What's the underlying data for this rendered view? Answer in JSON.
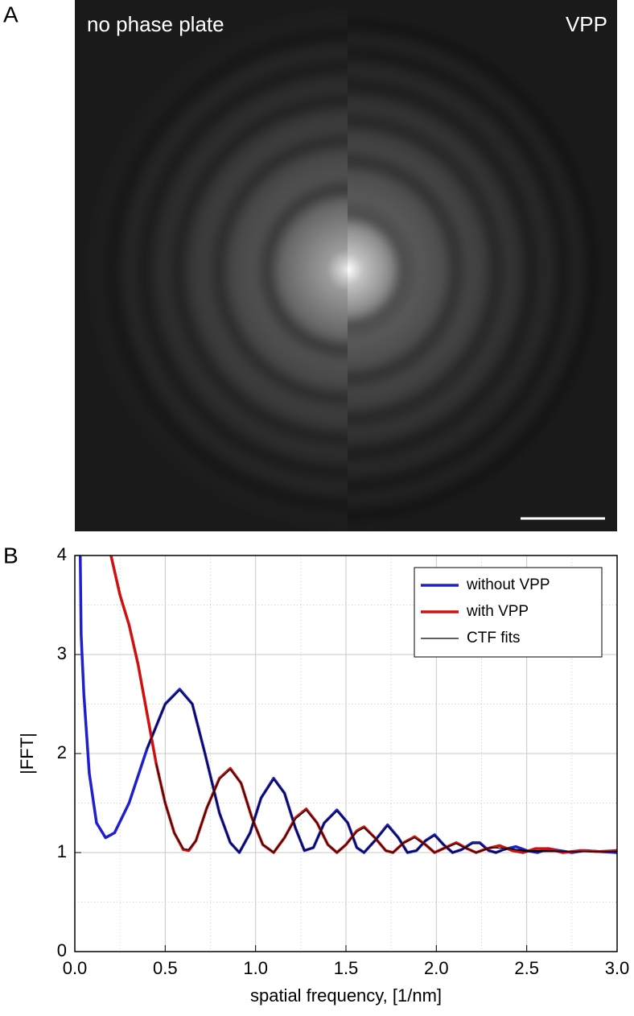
{
  "image_panel": {
    "label": "A",
    "left_text": "no phase plate",
    "right_text": "VPP"
  },
  "chart_data": {
    "type": "line",
    "panel_label": "B",
    "x_label": "spatial frequency, [1/nm]",
    "y_label": "|FFT|",
    "xlim": [
      0,
      3
    ],
    "ylim": [
      0,
      4
    ],
    "xticks": [
      {
        "value": 0,
        "label": "0.0"
      },
      0.5,
      {
        "value": 1,
        "label": "1.0"
      },
      1.5,
      {
        "value": 2,
        "label": "2.0"
      },
      2.5,
      {
        "value": 3,
        "label": "3.0"
      }
    ],
    "yticks": [
      0,
      1,
      2,
      3,
      4
    ],
    "xticks_minor": [
      0.25,
      0.75,
      1.25,
      1.75,
      2.25,
      2.75
    ],
    "yticks_minor": [
      0.5,
      1.5,
      2.5,
      3.5
    ],
    "grid": true,
    "legend": "upper right",
    "series": [
      {
        "name": "without VPP",
        "color": "#1f1fd0",
        "line_width": 3.5,
        "x": [
          0.03,
          0.035,
          0.05,
          0.08,
          0.12,
          0.17,
          0.22,
          0.3,
          0.4,
          0.5,
          0.58,
          0.65,
          0.72,
          0.8,
          0.86,
          0.91,
          0.97,
          1.03,
          1.1,
          1.16,
          1.22,
          1.27,
          1.32,
          1.38,
          1.45,
          1.51,
          1.56,
          1.6,
          1.66,
          1.73,
          1.79,
          1.84,
          1.89,
          1.94,
          1.99,
          2.04,
          2.09,
          2.14,
          2.2,
          2.24,
          2.29,
          2.33,
          2.37,
          2.44,
          2.5,
          2.56,
          2.62,
          2.68,
          2.75,
          2.82,
          2.9,
          3.0
        ],
        "values": [
          4,
          3.2,
          2.6,
          1.8,
          1.3,
          1.15,
          1.2,
          1.5,
          2.05,
          2.5,
          2.65,
          2.5,
          2.0,
          1.4,
          1.1,
          1.0,
          1.2,
          1.55,
          1.75,
          1.6,
          1.25,
          1.02,
          1.05,
          1.3,
          1.43,
          1.3,
          1.05,
          1.0,
          1.12,
          1.28,
          1.15,
          1.0,
          1.02,
          1.12,
          1.18,
          1.08,
          1.0,
          1.03,
          1.1,
          1.1,
          1.02,
          1.0,
          1.03,
          1.06,
          1.02,
          1.0,
          1.04,
          1.02,
          1.0,
          1.02,
          1.01,
          1.0
        ]
      },
      {
        "name": "with VPP",
        "color": "#d01010",
        "line_width": 3.5,
        "x": [
          0.2,
          0.25,
          0.3,
          0.35,
          0.4,
          0.45,
          0.5,
          0.55,
          0.6,
          0.63,
          0.67,
          0.73,
          0.8,
          0.86,
          0.92,
          0.98,
          1.04,
          1.1,
          1.16,
          1.22,
          1.28,
          1.34,
          1.4,
          1.45,
          1.5,
          1.56,
          1.6,
          1.66,
          1.72,
          1.76,
          1.82,
          1.88,
          1.94,
          1.99,
          2.05,
          2.11,
          2.17,
          2.22,
          2.28,
          2.35,
          2.42,
          2.48,
          2.55,
          2.62,
          2.7,
          2.8,
          2.9,
          3.0
        ],
        "values": [
          4,
          3.6,
          3.3,
          2.9,
          2.4,
          1.9,
          1.5,
          1.2,
          1.03,
          1.02,
          1.12,
          1.45,
          1.75,
          1.85,
          1.7,
          1.35,
          1.08,
          1.0,
          1.15,
          1.35,
          1.44,
          1.3,
          1.08,
          1.0,
          1.08,
          1.22,
          1.26,
          1.15,
          1.02,
          1.0,
          1.1,
          1.16,
          1.08,
          1.0,
          1.05,
          1.1,
          1.04,
          1.0,
          1.04,
          1.07,
          1.02,
          1.0,
          1.04,
          1.04,
          1.0,
          1.02,
          1.01,
          1.02
        ]
      },
      {
        "name": "CTF fits",
        "color": "#000000",
        "line_width": 1.2,
        "x": [
          0.4,
          0.5,
          0.58,
          0.65,
          0.72,
          0.8,
          0.86,
          0.91,
          0.97,
          1.03,
          1.1,
          1.16,
          1.22,
          1.27,
          1.32,
          1.38,
          1.45,
          1.51,
          1.56,
          1.6,
          1.66,
          1.73,
          1.79,
          1.84,
          1.89,
          1.94,
          1.99,
          2.04,
          2.09,
          2.14,
          2.2,
          2.24,
          2.29,
          2.33,
          2.4,
          2.5,
          2.6,
          2.75,
          3.0
        ],
        "values": [
          2.05,
          2.5,
          2.64,
          2.5,
          2.0,
          1.4,
          1.1,
          1.0,
          1.2,
          1.55,
          1.74,
          1.6,
          1.25,
          1.02,
          1.05,
          1.3,
          1.42,
          1.3,
          1.05,
          1.0,
          1.12,
          1.27,
          1.15,
          1.0,
          1.02,
          1.12,
          1.17,
          1.08,
          1.0,
          1.03,
          1.09,
          1.09,
          1.02,
          1.0,
          1.04,
          1.02,
          1.02,
          1.01,
          1.01
        ]
      },
      {
        "color": "#000000",
        "line_width": 1.2,
        "x": [
          0.45,
          0.5,
          0.55,
          0.6,
          0.63,
          0.67,
          0.73,
          0.8,
          0.86,
          0.92,
          0.98,
          1.04,
          1.1,
          1.16,
          1.22,
          1.28,
          1.34,
          1.4,
          1.45,
          1.5,
          1.56,
          1.6,
          1.66,
          1.72,
          1.76,
          1.82,
          1.88,
          1.94,
          1.99,
          2.05,
          2.11,
          2.17,
          2.22,
          2.3,
          2.4,
          2.5,
          2.7,
          3.0
        ],
        "values": [
          1.9,
          1.5,
          1.2,
          1.04,
          1.03,
          1.12,
          1.45,
          1.74,
          1.84,
          1.7,
          1.35,
          1.08,
          1.0,
          1.15,
          1.34,
          1.43,
          1.3,
          1.08,
          1.0,
          1.08,
          1.21,
          1.25,
          1.15,
          1.02,
          1.0,
          1.1,
          1.15,
          1.08,
          1.0,
          1.05,
          1.09,
          1.04,
          1.0,
          1.05,
          1.04,
          1.01,
          1.01,
          1.01
        ]
      }
    ]
  }
}
